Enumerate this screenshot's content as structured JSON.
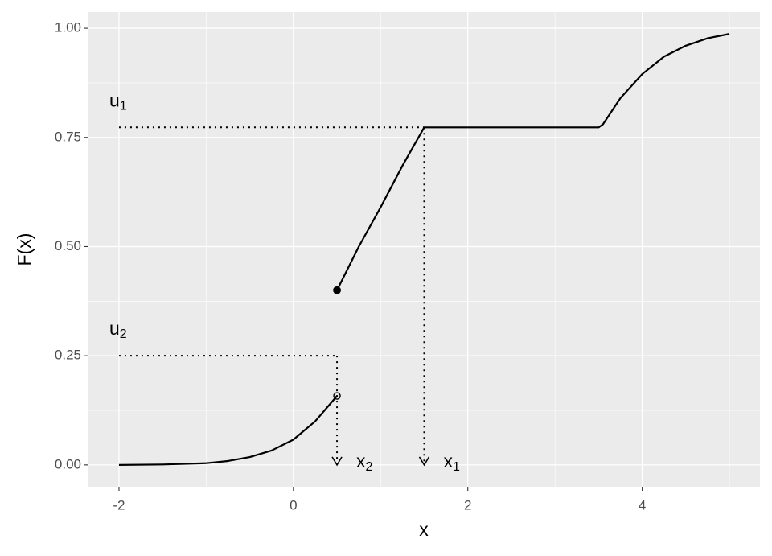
{
  "chart_data": {
    "type": "step-cdf",
    "x_label": "x",
    "y_label": "F(x)",
    "xlim": [
      -2.35,
      5.35
    ],
    "ylim": [
      -0.05,
      1.037
    ],
    "xticks": [
      -2,
      0,
      2,
      4
    ],
    "yticks": [
      {
        "value": 0,
        "label": "0.00"
      },
      {
        "value": 0.25,
        "label": "0.25"
      },
      {
        "value": 0.5,
        "label": "0.50"
      },
      {
        "value": 0.75,
        "label": "0.75"
      },
      {
        "value": 1,
        "label": "1.00"
      }
    ],
    "xminor": [
      -1,
      1,
      3,
      5
    ],
    "yminor": [
      0.125,
      0.375,
      0.625,
      0.875
    ],
    "grid": true,
    "color": "#000000",
    "segments": [
      {
        "x": [
          -2,
          -1.5,
          -1,
          -0.75,
          -0.5,
          -0.25,
          0,
          0.25,
          0.5
        ],
        "values": [
          0.0,
          0.001,
          0.004,
          0.009,
          0.018,
          0.033,
          0.058,
          0.1,
          0.158
        ]
      },
      {
        "x": [
          0.5,
          0.75,
          1.0,
          1.25,
          1.5,
          3.5,
          3.55,
          3.75,
          4.0,
          4.25,
          4.5,
          4.75,
          5.0
        ],
        "values": [
          0.4,
          0.5,
          0.59,
          0.685,
          0.773,
          0.773,
          0.78,
          0.84,
          0.895,
          0.935,
          0.96,
          0.977,
          0.987
        ]
      }
    ],
    "points": [
      {
        "x": 0.5,
        "y": 0.4,
        "filled": true
      },
      {
        "x": 0.5,
        "y": 0.158,
        "filled": false
      }
    ],
    "guides": [
      {
        "x_start": -2,
        "u": 0.773,
        "x": 1.5,
        "u_label": "u",
        "u_sub": "1",
        "x_label": "x",
        "x_sub": "1"
      },
      {
        "x_start": -2,
        "u": 0.25,
        "x": 0.5,
        "u_label": "u",
        "u_sub": "2",
        "x_label": "x",
        "x_sub": "2"
      }
    ]
  }
}
